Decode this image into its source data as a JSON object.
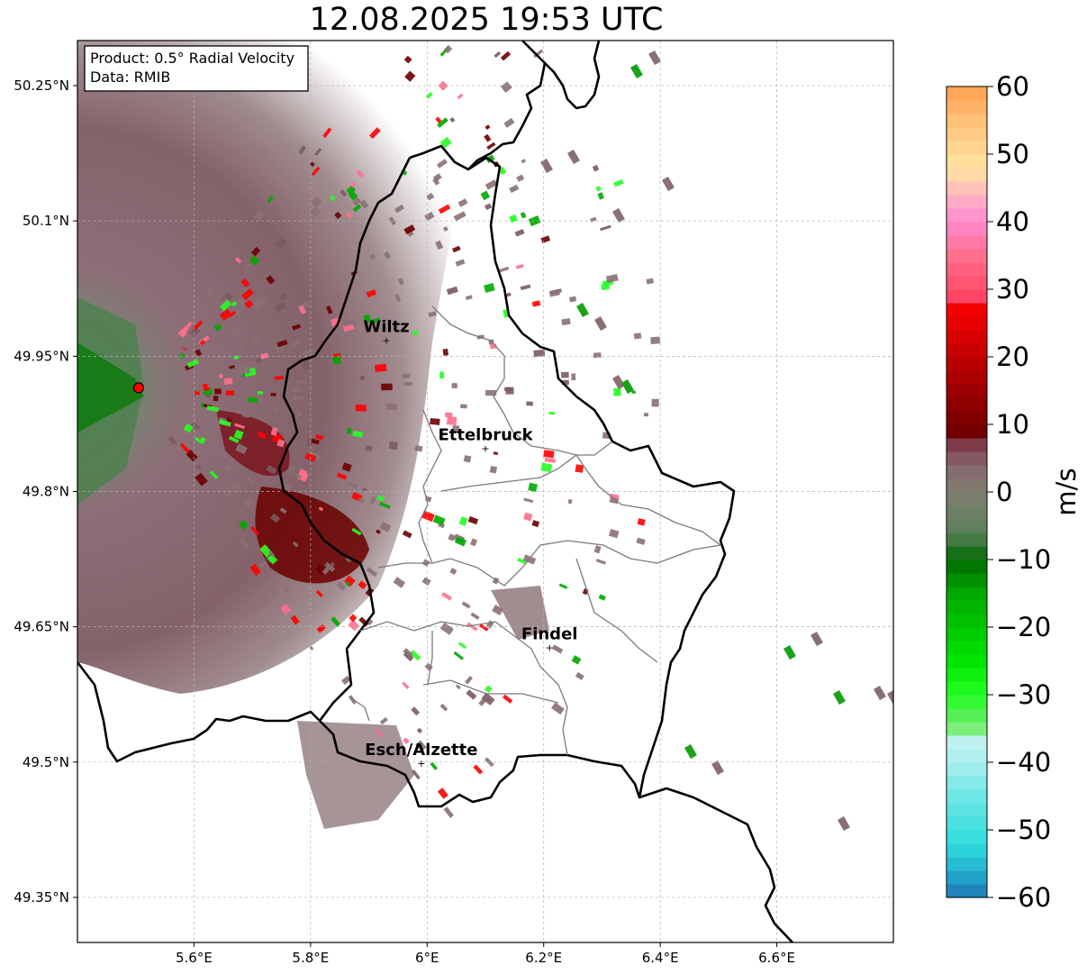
{
  "title": "12.08.2025 19:53 UTC",
  "info_box": {
    "product": "Product: 0.5° Radial Velocity",
    "data_source": "Data: RMIB"
  },
  "colorbar": {
    "label": "m/s",
    "min": -60,
    "max": 60,
    "ticks": [
      60,
      50,
      40,
      30,
      20,
      10,
      0,
      -10,
      -20,
      -30,
      -40,
      -50,
      -60
    ],
    "tick_labels": [
      "60",
      "50",
      "40",
      "30",
      "20",
      "10",
      "0",
      "−10",
      "−20",
      "−30",
      "−40",
      "−50",
      "−60"
    ],
    "stops": [
      {
        "v": -60,
        "color": "#1f77b4"
      },
      {
        "v": -56,
        "color": "#22b0cf"
      },
      {
        "v": -52,
        "color": "#30dede"
      },
      {
        "v": -45,
        "color": "#6de6e6"
      },
      {
        "v": -40,
        "color": "#aaeeee"
      },
      {
        "v": -37,
        "color": "#c0f0f0"
      },
      {
        "v": -36,
        "color": "#90ee90"
      },
      {
        "v": -33,
        "color": "#55f055"
      },
      {
        "v": -30,
        "color": "#22ff22"
      },
      {
        "v": -25,
        "color": "#00e600"
      },
      {
        "v": -15,
        "color": "#00a800"
      },
      {
        "v": -10,
        "color": "#006b00"
      },
      {
        "v": -6,
        "color": "#5a805a"
      },
      {
        "v": 0,
        "color": "#7f7f6f"
      },
      {
        "v": 4,
        "color": "#876670"
      },
      {
        "v": 8,
        "color": "#7a2c3c"
      },
      {
        "v": 8.1,
        "color": "#6b0000"
      },
      {
        "v": 20,
        "color": "#c00000"
      },
      {
        "v": 28,
        "color": "#ff0000"
      },
      {
        "v": 28.1,
        "color": "#ff4060"
      },
      {
        "v": 35,
        "color": "#ff6f8c"
      },
      {
        "v": 40,
        "color": "#ff8ad0"
      },
      {
        "v": 44,
        "color": "#ffb6c1"
      },
      {
        "v": 48,
        "color": "#ffe4a0"
      },
      {
        "v": 55,
        "color": "#ffc078"
      },
      {
        "v": 60,
        "color": "#ffa050"
      }
    ]
  },
  "map": {
    "lon_range": [
      5.4,
      6.8
    ],
    "lat_range": [
      49.3,
      50.3
    ],
    "x_ticks": [
      5.6,
      5.8,
      6.0,
      6.2,
      6.4,
      6.6
    ],
    "x_tick_labels": [
      "5.6°E",
      "5.8°E",
      "6°E",
      "6.2°E",
      "6.4°E",
      "6.6°E"
    ],
    "y_ticks": [
      49.35,
      49.5,
      49.65,
      49.8,
      49.95,
      50.1,
      50.25
    ],
    "y_tick_labels": [
      "49.35°N",
      "49.5°N",
      "49.65°N",
      "49.8°N",
      "49.95°N",
      "50.1°N",
      "50.25°N"
    ],
    "grid": true,
    "radar_site": {
      "lon": 5.505,
      "lat": 49.915
    },
    "cities": [
      {
        "name": "Wiltz",
        "lon": 5.93,
        "lat": 49.968
      },
      {
        "name": "Ettelbruck",
        "lon": 6.1,
        "lat": 49.848
      },
      {
        "name": "Findel",
        "lon": 6.21,
        "lat": 49.627
      },
      {
        "name": "Esch/Alzette",
        "lon": 5.99,
        "lat": 49.499
      }
    ]
  }
}
